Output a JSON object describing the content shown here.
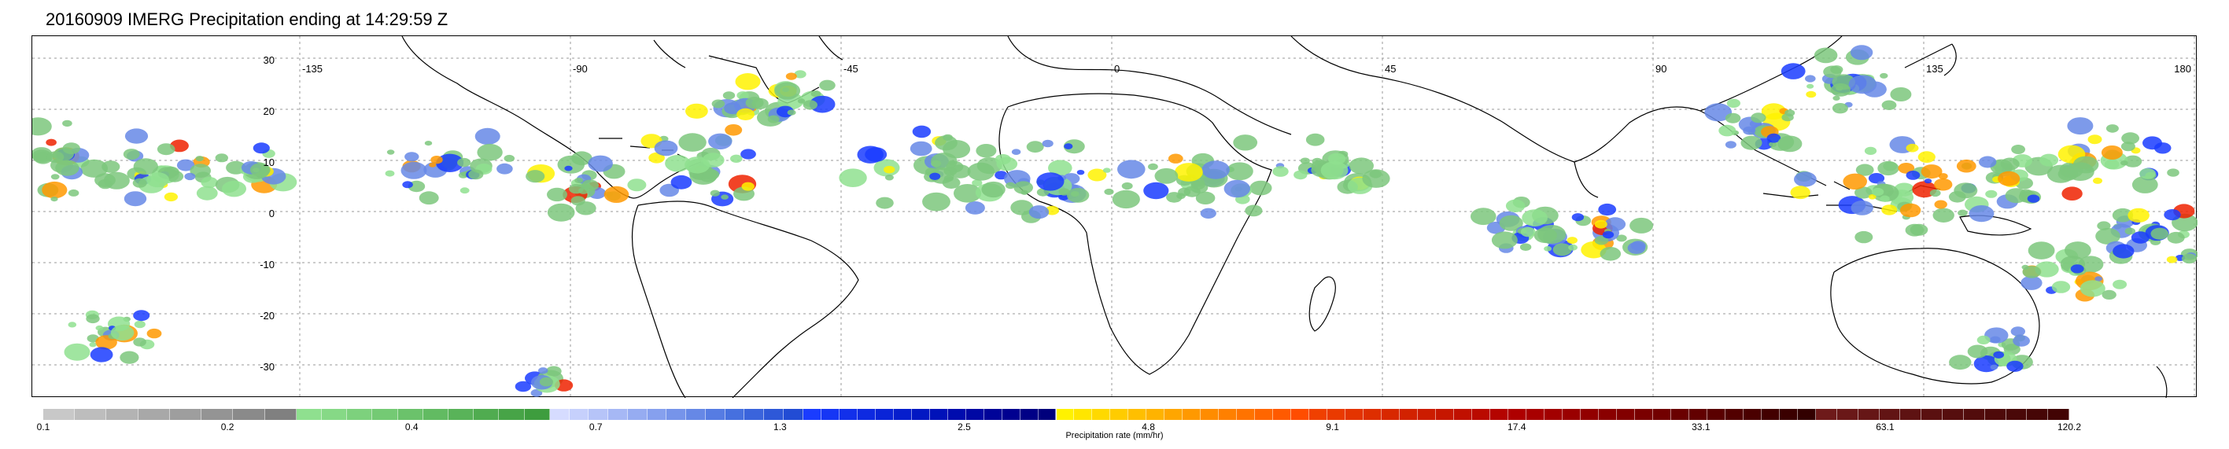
{
  "title": "20160909 IMERG Precipitation ending at 14:29:59 Z",
  "map": {
    "lat_labels": [
      "30",
      "20",
      "10",
      "0",
      "-10",
      "-20",
      "-30"
    ],
    "lon_labels": [
      "-135",
      "-90",
      "-45",
      "0",
      "45",
      "90",
      "135",
      "180"
    ]
  },
  "colorbar": {
    "label": "Precipitation rate (mm/hr)",
    "tick_labels": [
      "0.1",
      "0.2",
      "0.4",
      "0.7",
      "1.3",
      "2.5",
      "4.8",
      "9.1",
      "17.4",
      "33.1",
      "63.1",
      "120.2"
    ],
    "groups": [
      {
        "colors": [
          "#c8c8c8",
          "#bdbdbd",
          "#b3b3b3",
          "#a8a8a8",
          "#9e9e9e",
          "#949494",
          "#8a8a8a",
          "#808080"
        ]
      },
      {
        "colors": [
          "#8fe08f",
          "#86d986",
          "#7dd17d",
          "#74ca74",
          "#6bc26b",
          "#62bb62",
          "#59b359",
          "#50ac50",
          "#47a447",
          "#3e9d3e"
        ]
      },
      {
        "colors": [
          "#d6dcff",
          "#c6d0fc",
          "#b6c4f8",
          "#a6b8f5",
          "#96acf1",
          "#86a0ee",
          "#7694ea",
          "#6688e6",
          "#567ce3",
          "#4670df",
          "#3a64dc",
          "#2e58d8",
          "#224cd4"
        ]
      },
      {
        "colors": [
          "#1a3cff",
          "#1636f5",
          "#1230eb",
          "#0e2ae1",
          "#0a24d7",
          "#061ecd",
          "#0218c3",
          "#0012b9",
          "#000cae",
          "#0008a4",
          "#000499",
          "#000090",
          "#000086",
          "#00007c"
        ]
      },
      {
        "colors": [
          "#fff200",
          "#ffe600",
          "#ffd900",
          "#ffcc00",
          "#ffbf00",
          "#ffb300",
          "#ffa600",
          "#ff9900",
          "#ff8c00",
          "#ff8000",
          "#ff7300",
          "#ff6600",
          "#ff5a00",
          "#ff4d00"
        ]
      },
      {
        "colors": [
          "#f04000",
          "#ea3a00",
          "#e43400",
          "#de2e00",
          "#d82800",
          "#d22200",
          "#cc1c00",
          "#c61600",
          "#c01000",
          "#ba0a00",
          "#b40400",
          "#ae0000",
          "#a80000",
          "#a20000"
        ]
      },
      {
        "colors": [
          "#9a0000",
          "#920000",
          "#8a0000",
          "#820000",
          "#7a0000",
          "#720000",
          "#6a0000",
          "#620000",
          "#5a0000",
          "#520000",
          "#4a0000",
          "#420000",
          "#3a0000",
          "#320000"
        ]
      },
      {
        "colors": [
          "#6e1a1a",
          "#6a1818",
          "#661616",
          "#621414",
          "#5e1212",
          "#5a1010",
          "#560e0e",
          "#520c0c",
          "#4e0a0a",
          "#4a0808",
          "#460606",
          "#420404"
        ]
      }
    ]
  }
}
